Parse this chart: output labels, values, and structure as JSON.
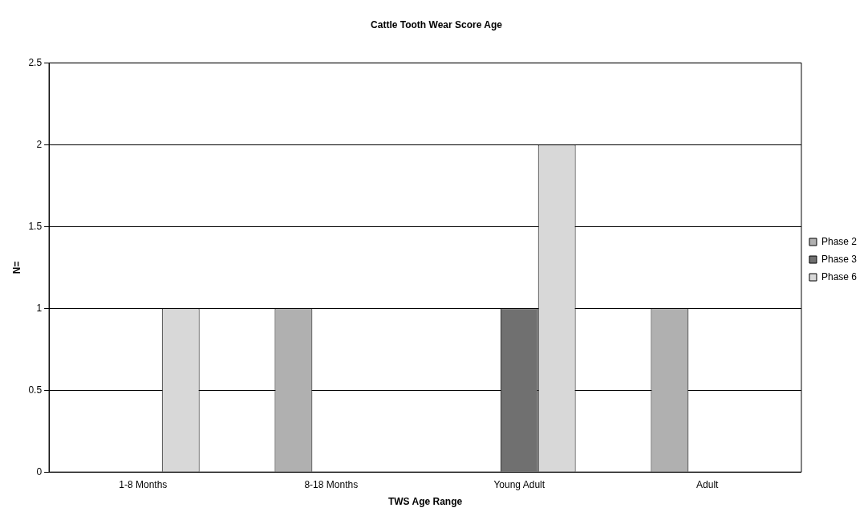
{
  "chart_data": {
    "type": "bar",
    "title": "Cattle Tooth Wear Score Age",
    "xlabel": "TWS Age Range",
    "ylabel": "N=",
    "categories": [
      "1-8 Months",
      "8-18 Months",
      "Young Adult",
      "Adult"
    ],
    "series": [
      {
        "name": "Phase 2",
        "color": "#b0b0b0",
        "values": [
          0,
          1,
          0,
          1
        ]
      },
      {
        "name": "Phase 3",
        "color": "#707070",
        "values": [
          0,
          0,
          1,
          0
        ]
      },
      {
        "name": "Phase 6",
        "color": "#d8d8d8",
        "values": [
          1,
          0,
          2,
          0
        ]
      }
    ],
    "ylim": [
      0,
      2.5
    ],
    "yticks": [
      0,
      0.5,
      1,
      1.5,
      2,
      2.5
    ],
    "grid": "y",
    "legend": "right"
  }
}
